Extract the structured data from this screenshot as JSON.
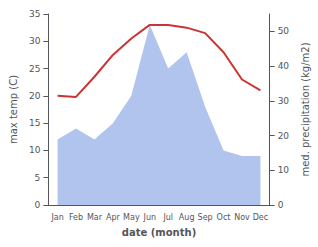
{
  "chart_data": {
    "type": "line",
    "xlabel": "date (month)",
    "ylabel": "max temp (C)",
    "y2label": "med. precipitation (kg/m2)",
    "categories": [
      "Jan",
      "Feb",
      "Mar",
      "Apr",
      "May",
      "Jun",
      "Jul",
      "Aug",
      "Sep",
      "Oct",
      "Nov",
      "Dec"
    ],
    "series": [
      {
        "type": "area",
        "color": "#b0c4ee",
        "values": [
          12.0,
          14.0,
          12.0,
          15.0,
          20.0,
          33.0,
          25.0,
          28.0,
          18.0,
          10.0,
          9.0,
          9.0
        ]
      },
      {
        "type": "line",
        "color": "#cc3333",
        "values": [
          20.0,
          19.8,
          23.5,
          27.5,
          30.5,
          33.0,
          33.0,
          32.5,
          31.5,
          28.0,
          23.0,
          21.0
        ]
      }
    ],
    "ylim": [
      0,
      35
    ],
    "yticks": [
      0,
      5,
      10,
      15,
      20,
      25,
      30,
      35
    ],
    "y2lim": [
      0,
      55
    ],
    "y2ticks": [
      0,
      10,
      20,
      30,
      40,
      50
    ],
    "grid": false
  }
}
